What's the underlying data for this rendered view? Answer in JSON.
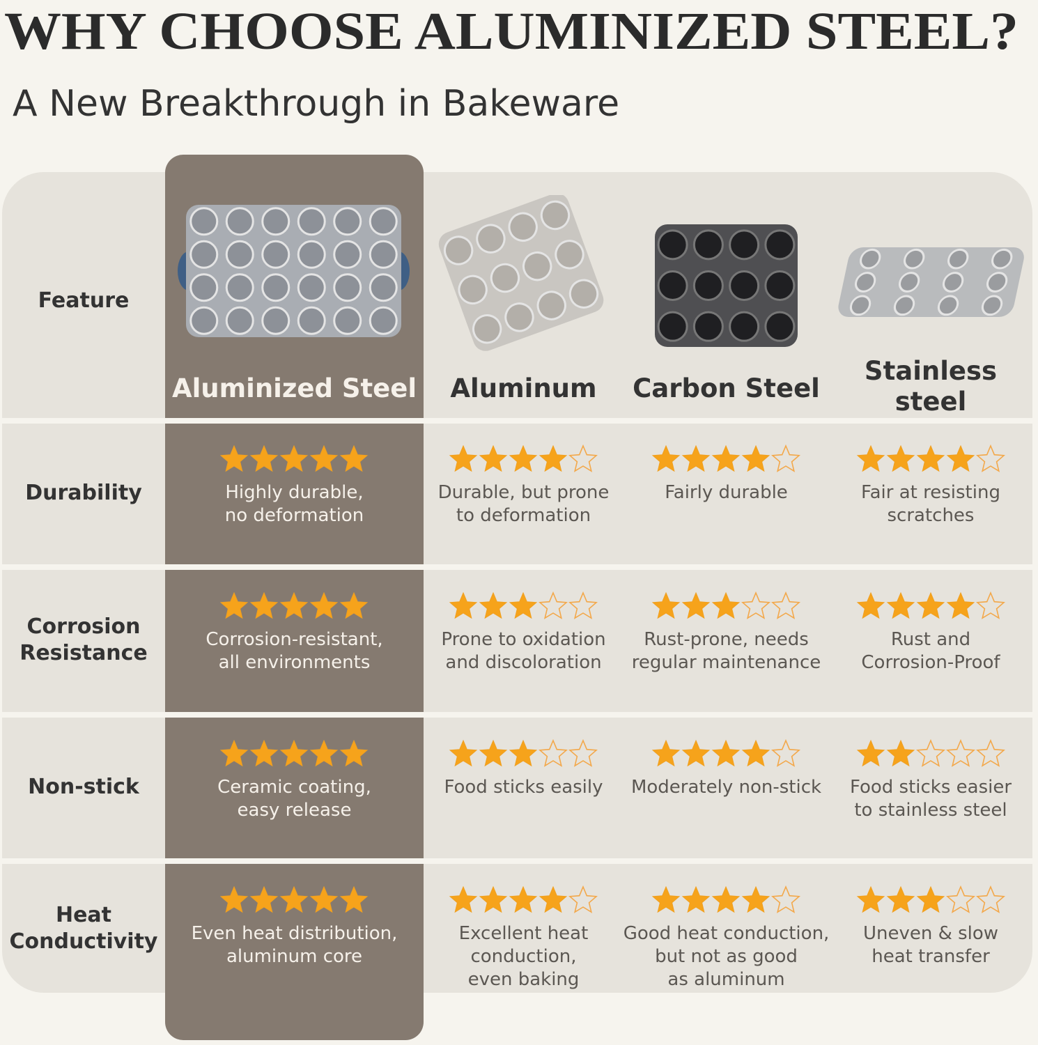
{
  "header": {
    "title": "WHY CHOOSE ALUMINIZED STEEL?",
    "subtitle": "A New Breakthrough in Bakeware"
  },
  "table": {
    "corner": "Feature",
    "max_stars": 5,
    "columns": [
      [
        "Aluminized Steel"
      ],
      [
        "Aluminum"
      ],
      [
        "Carbon Steel"
      ],
      [
        "Stainless",
        "steel"
      ]
    ],
    "rows": [
      {
        "feature": [
          "Durability"
        ],
        "cells": [
          {
            "stars": 5,
            "text": [
              "Highly durable,",
              "no deformation"
            ]
          },
          {
            "stars": 4,
            "text": [
              "Durable, but prone",
              "to deformation"
            ]
          },
          {
            "stars": 4,
            "text": [
              "Fairly durable"
            ]
          },
          {
            "stars": 4,
            "text": [
              "Fair at resisting",
              "scratches"
            ]
          }
        ]
      },
      {
        "feature": [
          "Corrosion",
          "Resistance"
        ],
        "cells": [
          {
            "stars": 5,
            "text": [
              "Corrosion-resistant,",
              "all environments"
            ]
          },
          {
            "stars": 3,
            "text": [
              "Prone to oxidation",
              "and discoloration"
            ]
          },
          {
            "stars": 3,
            "text": [
              "Rust-prone, needs",
              "regular maintenance"
            ]
          },
          {
            "stars": 4,
            "text": [
              "Rust and",
              "Corrosion-Proof"
            ]
          }
        ]
      },
      {
        "feature": [
          "Non-stick"
        ],
        "cells": [
          {
            "stars": 5,
            "text": [
              "Ceramic coating,",
              "easy release"
            ]
          },
          {
            "stars": 3,
            "text": [
              "Food sticks easily"
            ]
          },
          {
            "stars": 4,
            "text": [
              "Moderately non-stick"
            ]
          },
          {
            "stars": 2,
            "text": [
              "Food sticks easier",
              "to stainless steel"
            ]
          }
        ]
      },
      {
        "feature": [
          "Heat",
          "Conductivity"
        ],
        "cells": [
          {
            "stars": 5,
            "text": [
              "Even heat distribution,",
              "aluminum core"
            ]
          },
          {
            "stars": 4,
            "text": [
              "Excellent heat",
              "conduction,",
              "even baking"
            ]
          },
          {
            "stars": 4,
            "text": [
              "Good heat conduction,",
              "but not as good",
              "as aluminum"
            ]
          },
          {
            "stars": 3,
            "text": [
              "Uneven & slow",
              "heat transfer"
            ]
          }
        ]
      }
    ]
  }
}
